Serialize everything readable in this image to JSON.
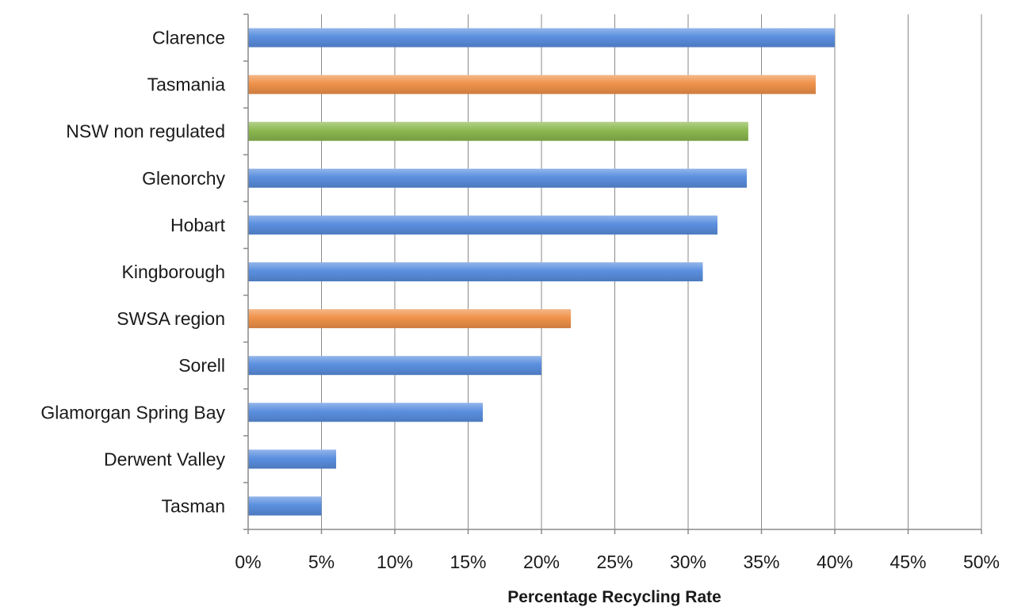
{
  "chart_data": {
    "type": "bar",
    "orientation": "horizontal",
    "categories": [
      "Clarence",
      "Tasmania",
      "NSW non regulated",
      "Glenorchy",
      "Hobart",
      "Kingborough",
      "SWSA region",
      "Sorell",
      "Glamorgan Spring Bay",
      "Derwent Valley",
      "Tasman"
    ],
    "values": [
      40,
      38.7,
      34.1,
      34,
      32,
      31,
      22,
      20,
      16,
      6,
      5
    ],
    "bar_colors": [
      "#5b8fdf",
      "#f0924a",
      "#8bb84f",
      "#5b8fdf",
      "#5b8fdf",
      "#5b8fdf",
      "#f0924a",
      "#5b8fdf",
      "#5b8fdf",
      "#5b8fdf",
      "#5b8fdf"
    ],
    "xlabel": "Percentage Recycling Rate",
    "ylabel": "",
    "title": "",
    "xlim": [
      0,
      50
    ],
    "x_ticks": [
      0,
      5,
      10,
      15,
      20,
      25,
      30,
      35,
      40,
      45,
      50
    ],
    "x_tick_labels": [
      "0%",
      "5%",
      "10%",
      "15%",
      "20%",
      "25%",
      "30%",
      "35%",
      "40%",
      "45%",
      "50%"
    ],
    "grid": "vertical",
    "legend": "none"
  }
}
